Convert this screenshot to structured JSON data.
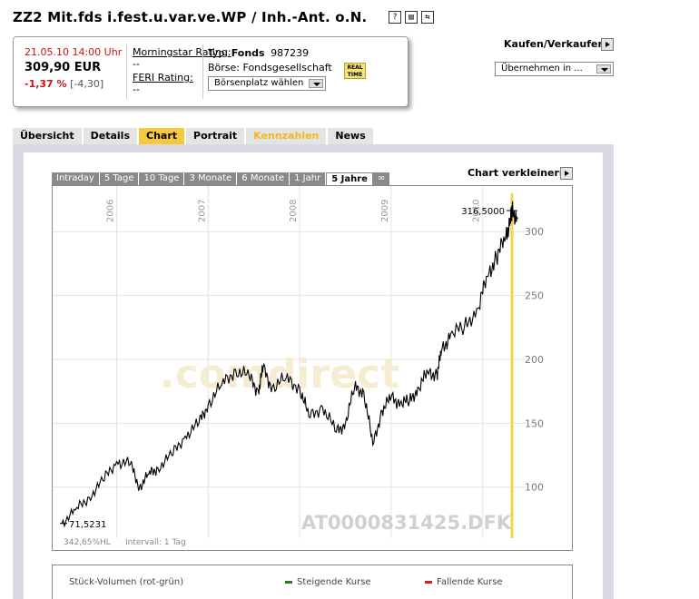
{
  "header": {
    "title": "ZZ2 Mit.fds i.fest.u.var.ve.WP / Inh.-Ant. o.N.",
    "icons": [
      "help-icon",
      "print-icon",
      "swap-icon"
    ]
  },
  "quote": {
    "datetime": "21.05.10 14:00 Uhr",
    "price": "309,90 EUR",
    "change_pct": "-1,37 %",
    "change_abs": "[-4,30]",
    "morningstar_label": "Morningstar Rating:",
    "morningstar_value": "--",
    "feri_label": "FERI Rating:",
    "feri_value": "--",
    "typ_label": "Typ:",
    "typ_value": "Fonds",
    "wkn": "987239",
    "boerse_label": "Börse:",
    "boerse_value": "Fondsgesellschaft",
    "boerse_select": "Börsenplatz wählen",
    "realtime_badge": "REAL TIME"
  },
  "trade": {
    "label": "Kaufen/Verkaufen",
    "select": "Übernehmen in ..."
  },
  "tabs": [
    {
      "label": "Übersicht",
      "state": "normal"
    },
    {
      "label": "Details",
      "state": "normal"
    },
    {
      "label": "Chart",
      "state": "active"
    },
    {
      "label": "Portrait",
      "state": "normal"
    },
    {
      "label": "Kennzahlen",
      "state": "disabled"
    },
    {
      "label": "News",
      "state": "normal"
    }
  ],
  "chart_panel": {
    "range_tabs": [
      "Intraday",
      "5 Tage",
      "10 Tage",
      "3 Monate",
      "6 Monate",
      "1 Jahr",
      "5 Jahre",
      "∞"
    ],
    "active_range": "5 Jahre",
    "shrink_label": "Chart verkleinern",
    "watermark_brand": ".comdirect",
    "watermark_isin": "AT0000831425.DFK",
    "footer_perf": "342,65%HL",
    "footer_interval": "Intervall: 1 Tag",
    "max_label": "316,5000",
    "min_label": "71,5231"
  },
  "volume": {
    "title": "Stück-Volumen (rot-grün)",
    "rising": "Steigende Kurse",
    "falling": "Fallende Kurse",
    "rising_color": "#2a7a2a",
    "falling_color": "#d02020"
  },
  "chart_data": {
    "type": "line",
    "x_ticks": [
      "2006",
      "2007",
      "2008",
      "2009",
      "2010"
    ],
    "y_ticks": [
      100,
      150,
      200,
      250,
      300
    ],
    "ylim": [
      60,
      330
    ],
    "series": [
      {
        "x": [
          2005.4,
          2005.55,
          2005.7,
          2005.85,
          2006.0,
          2006.15,
          2006.25,
          2006.35,
          2006.45,
          2006.6,
          2006.75,
          2006.9,
          2007.0,
          2007.15,
          2007.3,
          2007.45,
          2007.55,
          2007.6,
          2007.7,
          2007.85,
          2008.0,
          2008.1,
          2008.25,
          2008.4,
          2008.5,
          2008.6,
          2008.7,
          2008.8,
          2008.9,
          2009.0,
          2009.1,
          2009.2,
          2009.3,
          2009.4,
          2009.5,
          2009.55,
          2009.65,
          2009.8,
          2009.95,
          2010.05,
          2010.15,
          2010.25,
          2010.3,
          2010.32,
          2010.38
        ],
        "y": [
          71.5,
          82,
          92,
          105,
          120,
          118,
          100,
          110,
          115,
          125,
          140,
          150,
          165,
          180,
          192,
          186,
          175,
          193,
          178,
          185,
          178,
          155,
          163,
          143,
          150,
          178,
          175,
          133,
          160,
          170,
          166,
          167,
          178,
          190,
          188,
          206,
          220,
          225,
          240,
          265,
          280,
          295,
          308,
          316.5,
          309.9
        ]
      }
    ],
    "grid": true,
    "max_annotation": 316.5,
    "min_annotation": 71.5231
  }
}
